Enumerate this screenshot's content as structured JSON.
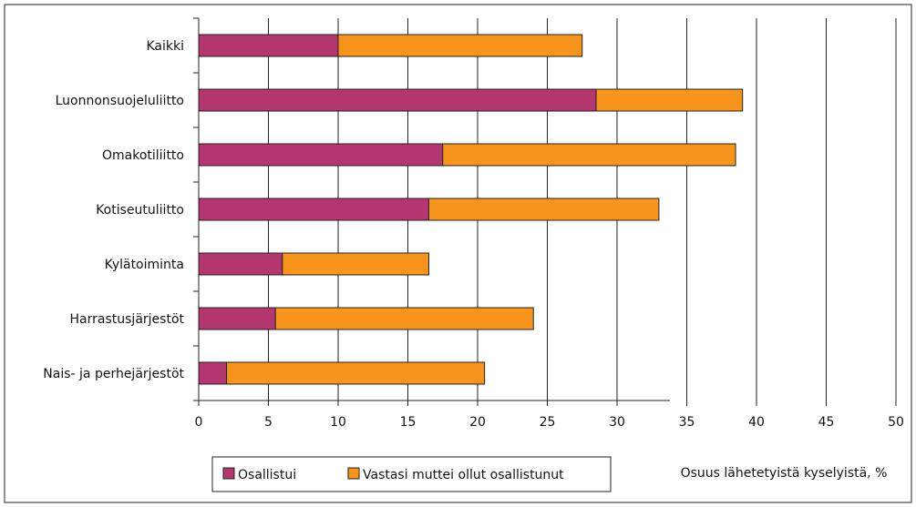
{
  "chart_data": {
    "type": "bar",
    "orientation": "horizontal",
    "stacked": true,
    "categories": [
      "Kaikki",
      "Luonnonsuojeluliitto",
      "Omakotiliitto",
      "Kotiseutuliitto",
      "Kylätoiminta",
      "Harrastusjärjestöt",
      "Nais- ja perhejärjestöt"
    ],
    "series": [
      {
        "name": "Osallistui",
        "color": "#b5376f",
        "values": [
          10,
          28.5,
          17.5,
          16.5,
          6,
          5.5,
          2
        ]
      },
      {
        "name": "Vastasi muttei ollut osallistunut",
        "color": "#f7941d",
        "values": [
          17.5,
          10.5,
          21,
          16.5,
          10.5,
          18.5,
          18.5
        ]
      }
    ],
    "xlim": [
      0,
      50
    ],
    "xticks": [
      "0",
      "5",
      "10",
      "15",
      "20",
      "25",
      "30",
      "35",
      "40",
      "45",
      "50"
    ],
    "xlabel": "Osuus lähetetyistä kyselyistä, %",
    "grid": "vertical",
    "legend_position": "bottom-left"
  }
}
